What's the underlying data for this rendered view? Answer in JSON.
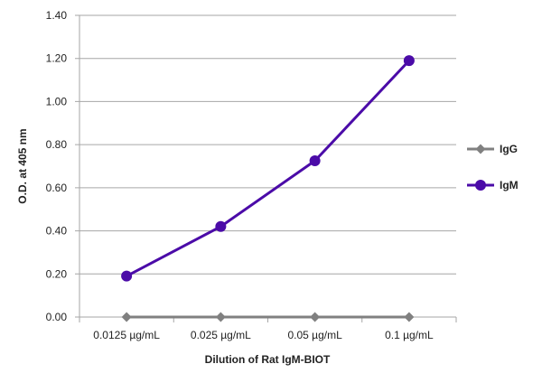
{
  "chart_data": {
    "type": "line",
    "title": "",
    "xlabel": "Dilution of Rat IgM-BIOT",
    "ylabel": "O.D. at 405 nm",
    "categories": [
      "0.0125 µg/mL",
      "0.025 µg/mL",
      "0.05 µg/mL",
      "0.1 µg/mL"
    ],
    "ylim": [
      0,
      1.4
    ],
    "yticks": [
      "0.00",
      "0.20",
      "0.40",
      "0.60",
      "0.80",
      "1.00",
      "1.20",
      "1.40"
    ],
    "grid": true,
    "legend_position": "right",
    "series": [
      {
        "name": "IgG",
        "values": [
          0,
          0,
          0,
          0
        ],
        "color": "#808080",
        "marker": "diamond"
      },
      {
        "name": "IgM",
        "values": [
          0.19,
          0.42,
          0.725,
          1.19
        ],
        "color": "#4B0BA8",
        "marker": "circle"
      }
    ]
  }
}
